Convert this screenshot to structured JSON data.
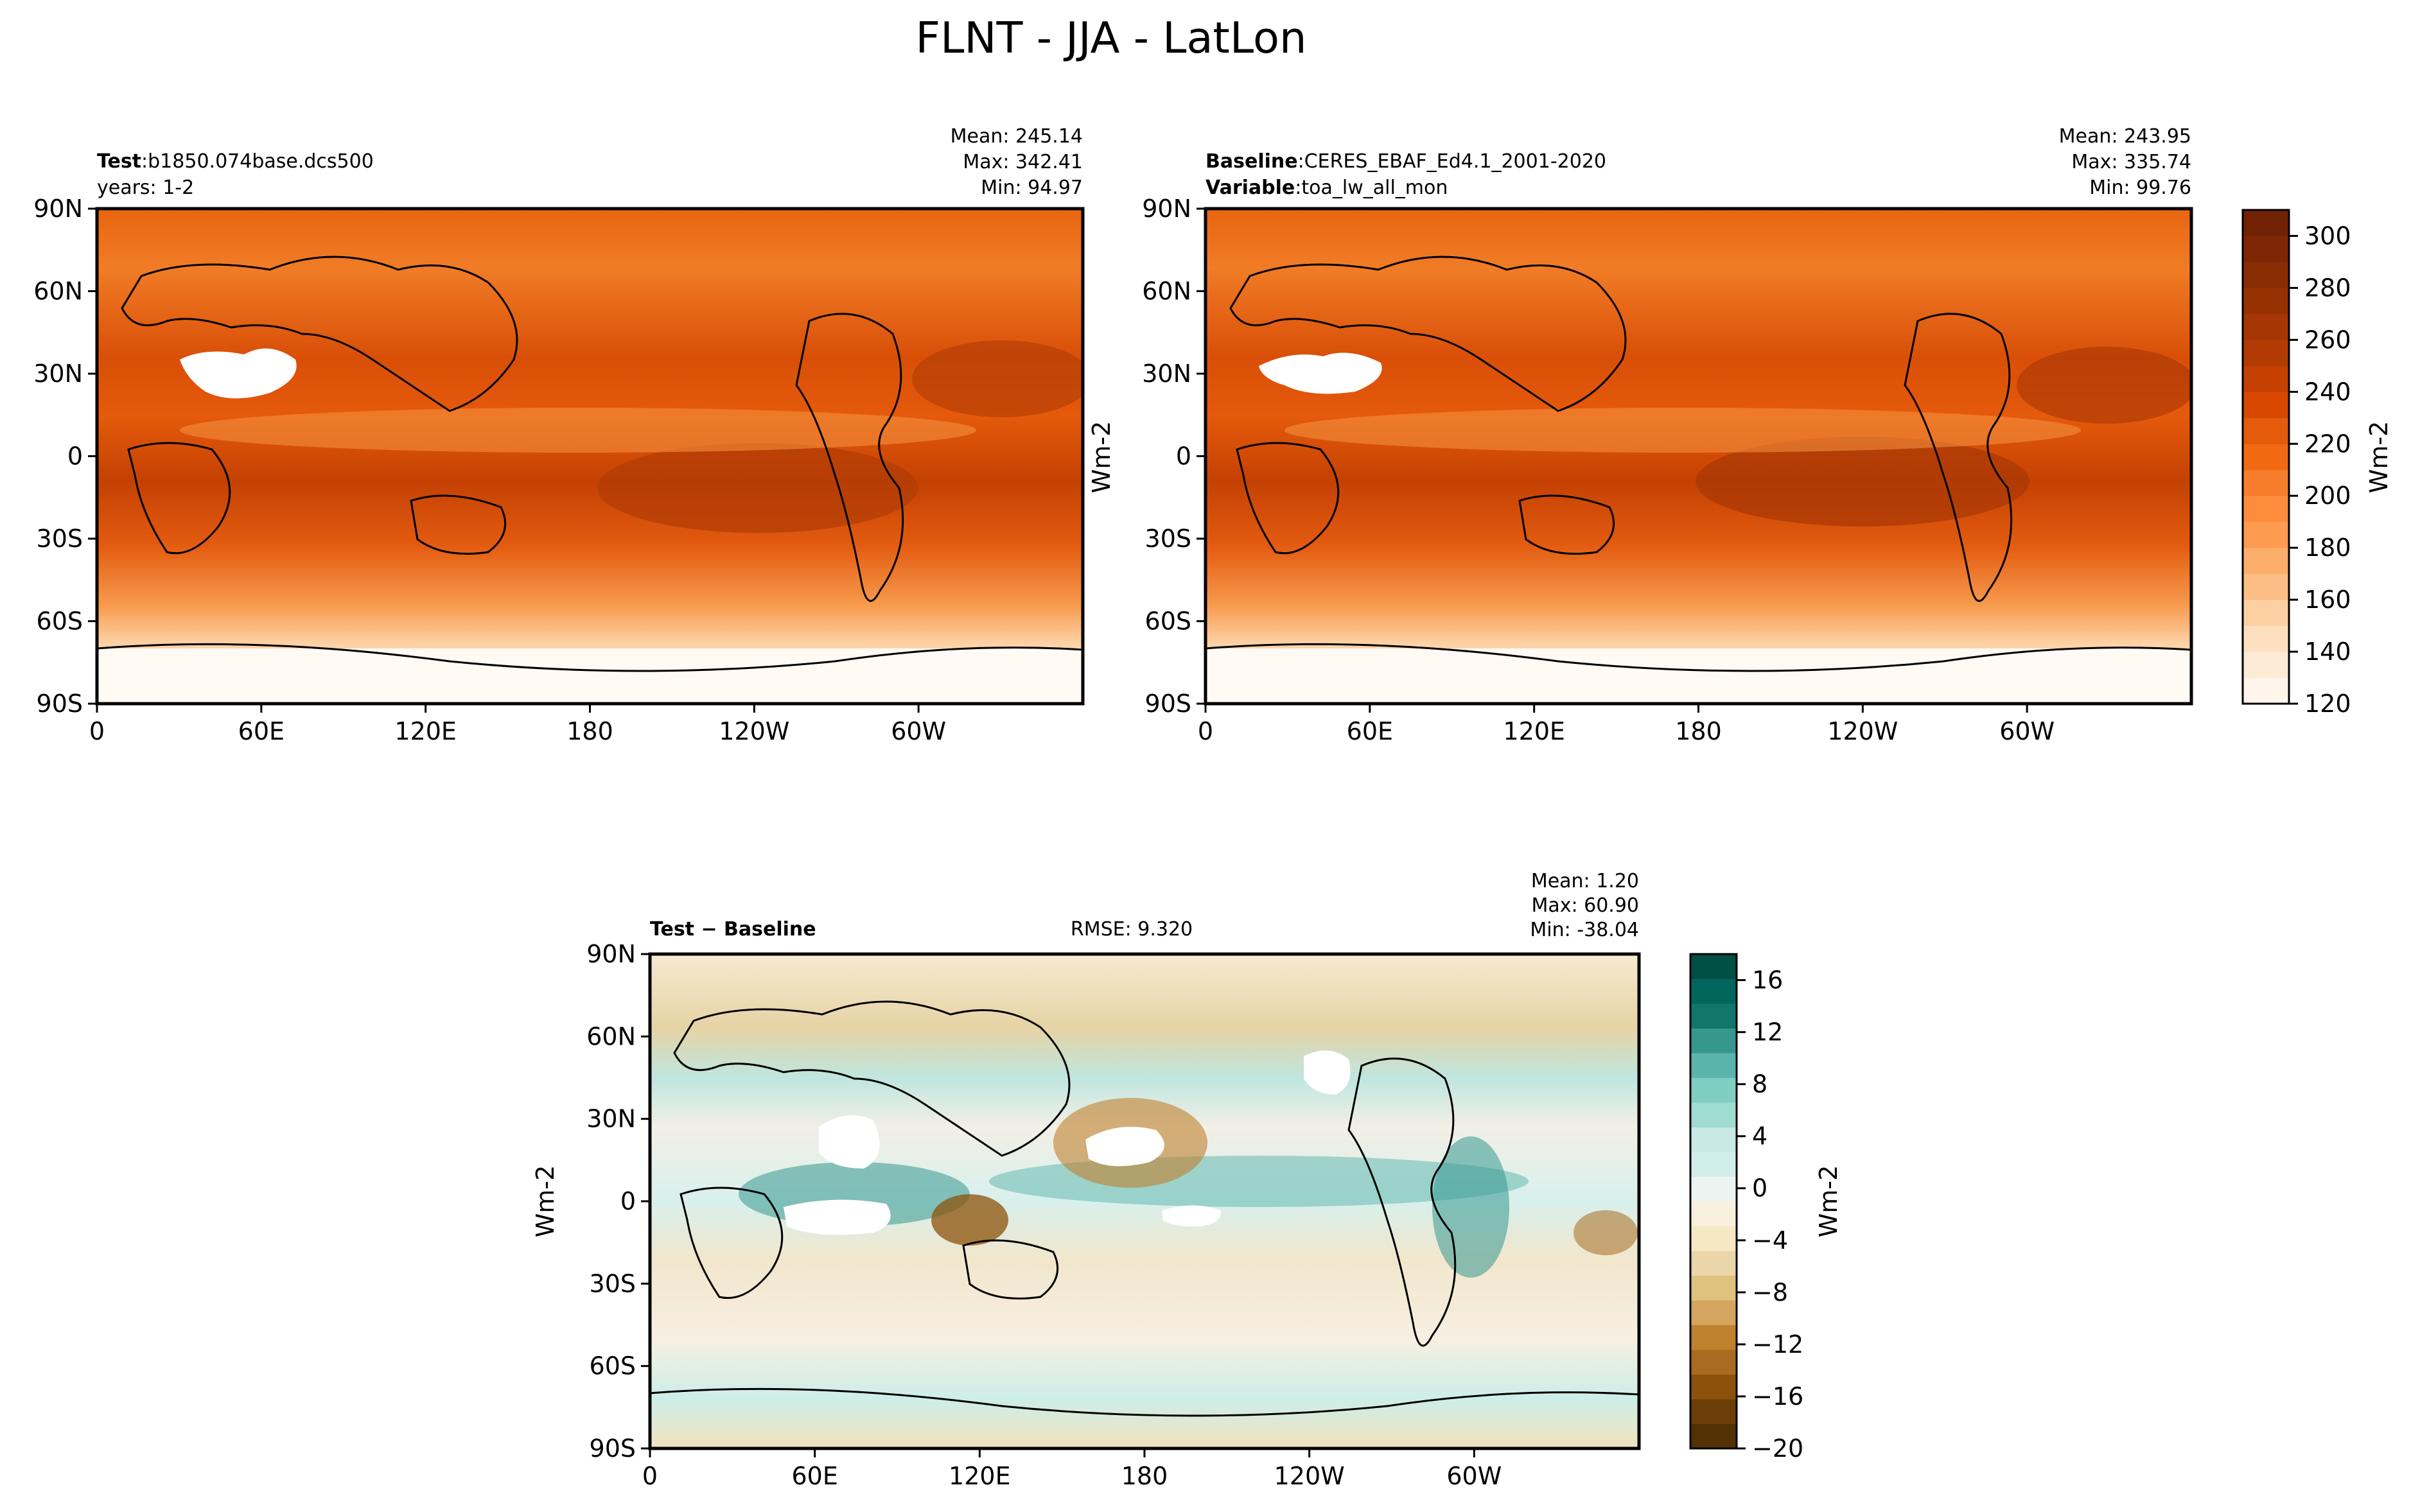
{
  "figure": {
    "title": "FLNT - JJA - LatLon"
  },
  "chart_data": [
    {
      "type": "heatmap",
      "panel": "test",
      "header": {
        "left_label_bold": "Test",
        "left_label_sep": ":",
        "left_label_value": "b1850.074base.dcs500",
        "left_line2": "years: 1-2",
        "stats": [
          "Mean: 245.14",
          "Max: 342.41",
          "Min: 94.97"
        ]
      },
      "x_ticks": [
        "0",
        "60E",
        "120E",
        "180",
        "120W",
        "60W"
      ],
      "x_tick_values": [
        0,
        60,
        120,
        180,
        240,
        300
      ],
      "y_ticks": [
        "90N",
        "60N",
        "30N",
        "0",
        "30S",
        "60S",
        "90S"
      ],
      "y_tick_values": [
        90,
        60,
        30,
        0,
        -30,
        -60,
        -90
      ],
      "xlim": [
        0,
        360
      ],
      "ylim": [
        -90,
        90
      ],
      "ylabel": "Wm-2",
      "colormap": "Oranges",
      "levels": [
        120,
        130,
        140,
        150,
        160,
        170,
        180,
        190,
        200,
        210,
        220,
        230,
        240,
        250,
        260,
        270,
        280,
        290,
        300,
        310
      ],
      "white_regions": [
        "Arabia-Sahara (>310)",
        "Antarctica (<120)"
      ]
    },
    {
      "type": "heatmap",
      "panel": "baseline",
      "header": {
        "left_label_bold": "Baseline",
        "left_label_sep": ":",
        "left_label_value": "CERES_EBAF_Ed4.1_2001-2020",
        "left_line2_bold": "Variable",
        "left_line2_sep": ":",
        "left_line2_value": "toa_lw_all_mon",
        "stats": [
          "Mean: 243.95",
          "Max: 335.74",
          "Min: 99.76"
        ]
      },
      "x_ticks": [
        "0",
        "60E",
        "120E",
        "180",
        "120W",
        "60W"
      ],
      "x_tick_values": [
        0,
        60,
        120,
        180,
        240,
        300
      ],
      "y_ticks": [
        "90N",
        "60N",
        "30N",
        "0",
        "30S",
        "60S",
        "90S"
      ],
      "y_tick_values": [
        90,
        60,
        30,
        0,
        -30,
        -60,
        -90
      ],
      "xlim": [
        0,
        360
      ],
      "ylim": [
        -90,
        90
      ],
      "colorbar": {
        "label": "Wm-2",
        "ticks": [
          "120",
          "140",
          "160",
          "180",
          "200",
          "220",
          "240",
          "260",
          "280",
          "300"
        ],
        "tick_values": [
          120,
          140,
          160,
          180,
          200,
          220,
          240,
          260,
          280,
          300
        ],
        "range": [
          120,
          310
        ],
        "colors": [
          "#fff5eb",
          "#feebd6",
          "#fee0c1",
          "#fdd0a2",
          "#fdbe85",
          "#fdae6b",
          "#fd9b50",
          "#fd8d3c",
          "#f67d2b",
          "#f16913",
          "#e65a0b",
          "#d94801",
          "#c44103",
          "#b23b03",
          "#a63603",
          "#973104",
          "#8a2c04",
          "#7f2704",
          "#722204"
        ]
      }
    },
    {
      "type": "heatmap",
      "panel": "difference",
      "header": {
        "left_label_bold": "Test − Baseline",
        "center": "RMSE: 9.320",
        "stats": [
          "Mean:  1.20",
          "Max: 60.90",
          "Min: -38.04"
        ]
      },
      "x_ticks": [
        "0",
        "60E",
        "120E",
        "180",
        "120W",
        "60W"
      ],
      "x_tick_values": [
        0,
        60,
        120,
        180,
        240,
        300
      ],
      "y_ticks": [
        "90N",
        "60N",
        "30N",
        "0",
        "30S",
        "60S",
        "90S"
      ],
      "y_tick_values": [
        90,
        60,
        30,
        0,
        -30,
        -60,
        -90
      ],
      "xlim": [
        0,
        360
      ],
      "ylim": [
        -90,
        90
      ],
      "ylabel": "Wm-2",
      "colorbar": {
        "label": "Wm-2",
        "ticks": [
          "16",
          "12",
          "8",
          "4",
          "0",
          "−4",
          "−8",
          "−12",
          "−16",
          "−20"
        ],
        "tick_values": [
          16,
          12,
          8,
          4,
          0,
          -4,
          -8,
          -12,
          -16,
          -20
        ],
        "range": [
          -20,
          18
        ],
        "colors": [
          "#543005",
          "#6b3d08",
          "#8c510a",
          "#a86b20",
          "#bf812d",
          "#d3a55e",
          "#dfc27d",
          "#ead6a8",
          "#f6e8c3",
          "#f8f0dc",
          "#ecf4f2",
          "#d2eeea",
          "#c7eae5",
          "#9fdcd2",
          "#80cdc1",
          "#5ab4ac",
          "#35978f",
          "#11766c",
          "#01665e",
          "#004f45"
        ]
      }
    }
  ]
}
